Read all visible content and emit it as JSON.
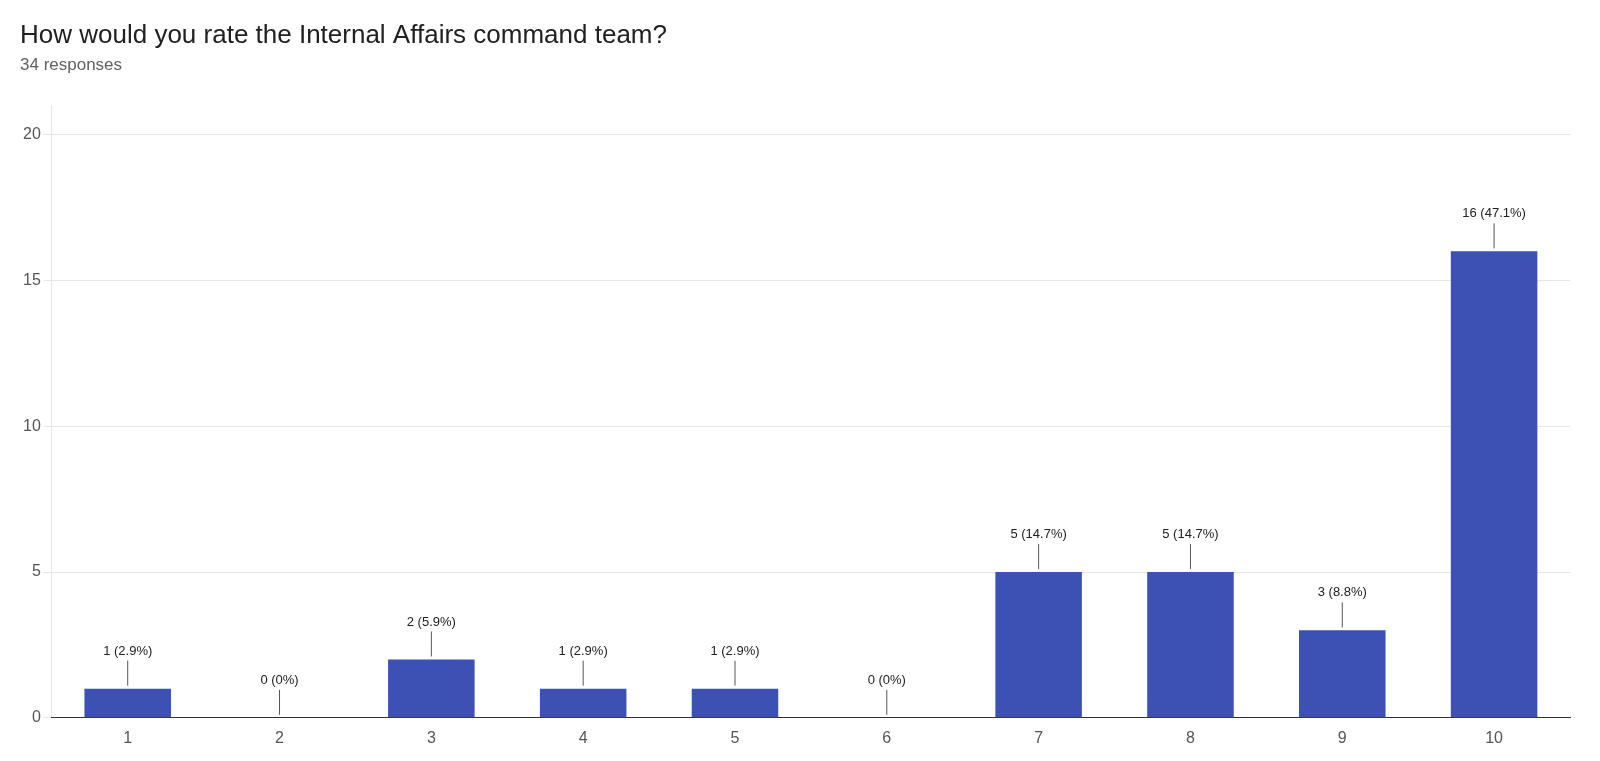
{
  "chart_data": {
    "type": "bar",
    "title": "How would you rate the Internal Affairs command team?",
    "subtitle": "34 responses",
    "categories": [
      1,
      2,
      3,
      4,
      5,
      6,
      7,
      8,
      9,
      10
    ],
    "values": [
      1,
      0,
      2,
      1,
      1,
      0,
      5,
      5,
      3,
      16
    ],
    "value_labels": [
      "1 (2.9%)",
      "0 (0%)",
      "2 (5.9%)",
      "1 (2.9%)",
      "1 (2.9%)",
      "0 (0%)",
      "5 (14.7%)",
      "5 (14.7%)",
      "3 (8.8%)",
      "16 (47.1%)"
    ],
    "data_labels": true,
    "color": "#3d51b5",
    "ylim": [
      0,
      21
    ],
    "yticks": [
      0,
      5,
      10,
      15,
      20
    ],
    "grid": true
  }
}
